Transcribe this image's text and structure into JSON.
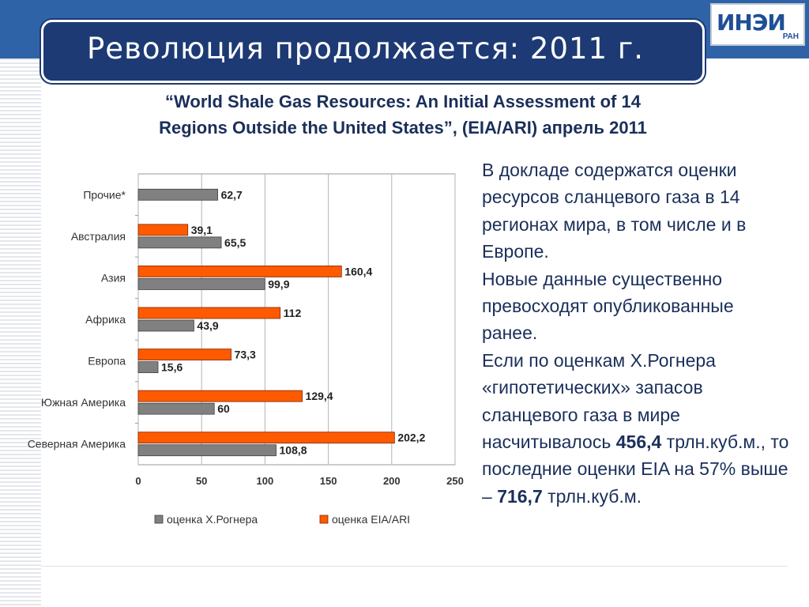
{
  "slide": {
    "title": "Революция продолжается: 2011 г.",
    "subtitle_line1": "“World Shale Gas Resources: An Initial Assessment of 14",
    "subtitle_line2": "Regions Outside the United States”, (EIA/ARI) апрель 2011",
    "logo_text": "ИНЭИ",
    "logo_sub": "РАН",
    "body": {
      "p1": "В докладе содержатся оценки ресурсов сланцевого газа в 14 регионах мира, в том числе и в Европе.",
      "p2": "Новые данные существенно превосходят опубликованные ранее.",
      "p3_a": "Если по оценкам Х.Рогнера «гипотетических» запасов сланцевого газа в мире насчитывалось ",
      "p3_b": "456,4",
      "p3_c": " трлн.куб.м., то последние оценки EIA на 57% выше – ",
      "p3_d": "716,7",
      "p3_e": " трлн.куб.м."
    },
    "colors": {
      "top_band": "#2f63a8",
      "title_box": "#1d3a74",
      "text": "#1a2f5a",
      "series_rogner": "#808080",
      "series_eia": "#ff5a00"
    }
  },
  "chart_data": {
    "type": "bar",
    "orientation": "horizontal",
    "categories": [
      "Прочие*",
      "Австралия",
      "Азия",
      "Африка",
      "Европа",
      "Южная Америка",
      "Северная Америка"
    ],
    "series": [
      {
        "name": "оценка Х.Рогнера",
        "color": "#808080",
        "values": [
          62.7,
          65.5,
          99.9,
          43.9,
          15.6,
          60,
          108.8
        ],
        "labels": [
          "62,7",
          "65,5",
          "99,9",
          "43,9",
          "15,6",
          "60",
          "108,8"
        ]
      },
      {
        "name": "оценка EIA/ARI",
        "color": "#ff5a00",
        "values": [
          null,
          39.1,
          160.4,
          112,
          73.3,
          129.4,
          202.2
        ],
        "labels": [
          "",
          "39,1",
          "160,4",
          "112",
          "73,3",
          "129,4",
          "202,2"
        ]
      }
    ],
    "xlim": [
      0,
      250
    ],
    "xticks": [
      "0",
      "50",
      "100",
      "150",
      "200",
      "250"
    ],
    "xtick_values": [
      0,
      50,
      100,
      150,
      200,
      250
    ],
    "grid": true,
    "legend_position": "bottom"
  }
}
